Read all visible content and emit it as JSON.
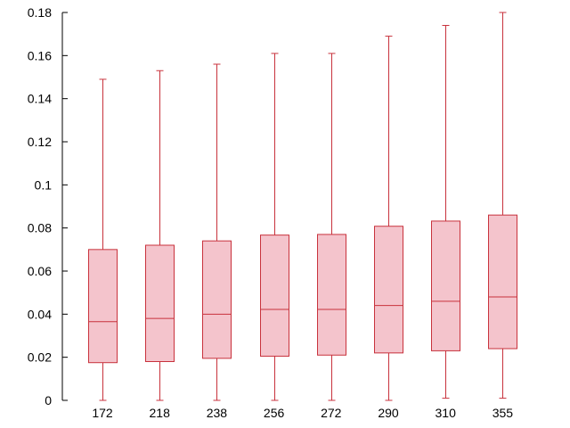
{
  "chart_data": {
    "type": "box",
    "categories": [
      "172",
      "218",
      "238",
      "256",
      "272",
      "290",
      "310",
      "355"
    ],
    "series": [
      {
        "boxes": [
          {
            "min": 0.0,
            "q1": 0.0175,
            "median": 0.0365,
            "q3": 0.07,
            "max": 0.149
          },
          {
            "min": 0.0,
            "q1": 0.018,
            "median": 0.038,
            "q3": 0.072,
            "max": 0.153
          },
          {
            "min": 0.0,
            "q1": 0.0195,
            "median": 0.04,
            "q3": 0.074,
            "max": 0.156
          },
          {
            "min": 0.0,
            "q1": 0.0205,
            "median": 0.0422,
            "q3": 0.0767,
            "max": 0.161
          },
          {
            "min": 0.0,
            "q1": 0.021,
            "median": 0.0422,
            "q3": 0.077,
            "max": 0.161
          },
          {
            "min": 0.0,
            "q1": 0.022,
            "median": 0.044,
            "q3": 0.0808,
            "max": 0.169
          },
          {
            "min": 0.001,
            "q1": 0.023,
            "median": 0.046,
            "q3": 0.0832,
            "max": 0.174
          },
          {
            "min": 0.001,
            "q1": 0.024,
            "median": 0.048,
            "q3": 0.086,
            "max": 0.18
          }
        ]
      }
    ],
    "y_ticks": [
      "0",
      "0.02",
      "0.04",
      "0.06",
      "0.08",
      "0.1",
      "0.12",
      "0.14",
      "0.16",
      "0.18"
    ],
    "y_tick_values": [
      0,
      0.02,
      0.04,
      0.06,
      0.08,
      0.1,
      0.12,
      0.14,
      0.16,
      0.18
    ],
    "ylim": [
      0,
      0.18
    ],
    "title": "",
    "xlabel": "",
    "ylabel": "",
    "grid": false,
    "colors": {
      "box_fill": "#f4c4cc",
      "box_stroke": "#c8323c",
      "axis": "#000000"
    }
  }
}
